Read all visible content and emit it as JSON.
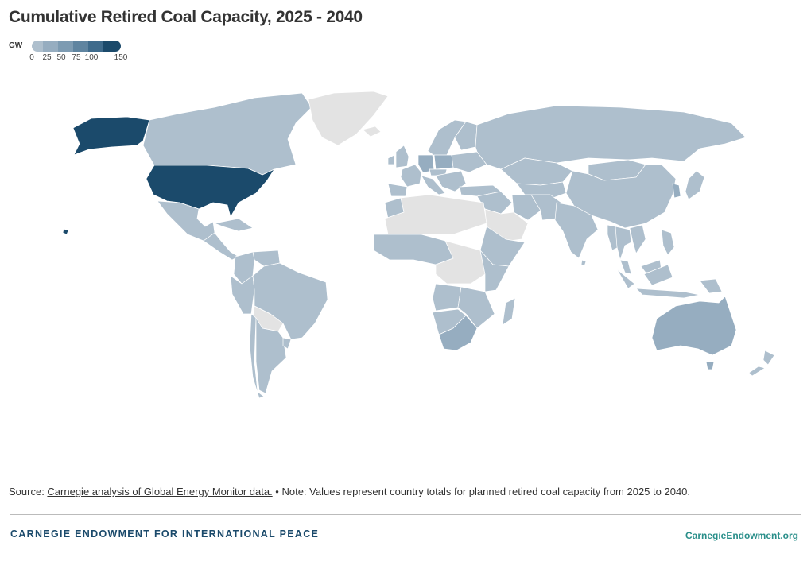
{
  "title": "Cumulative Retired Coal Capacity, 2025 - 2040",
  "legend": {
    "unit": "GW",
    "ticks": [
      {
        "label": "0",
        "value": 0
      },
      {
        "label": "25",
        "value": 25
      },
      {
        "label": "50",
        "value": 50
      },
      {
        "label": "75",
        "value": 75
      },
      {
        "label": "100",
        "value": 100
      },
      {
        "label": "150",
        "value": 150
      }
    ],
    "colors": [
      "#aebfcd",
      "#96adc0",
      "#7d9bb2",
      "#5f84a0",
      "#3f6b8c",
      "#1b4a6b"
    ],
    "no_data_color": "#e3e3e3",
    "min": 0,
    "max": 150
  },
  "map": {
    "regions": [
      {
        "name": "United States",
        "value": 150
      },
      {
        "name": "Alaska",
        "value": 150
      },
      {
        "name": "Canada",
        "value": 8
      },
      {
        "name": "Greenland",
        "value": null
      },
      {
        "name": "Mexico",
        "value": 6
      },
      {
        "name": "Central America",
        "value": 1
      },
      {
        "name": "Caribbean",
        "value": 1
      },
      {
        "name": "Colombia",
        "value": 3
      },
      {
        "name": "Venezuela",
        "value": 1
      },
      {
        "name": "Peru",
        "value": 2
      },
      {
        "name": "Brazil",
        "value": 4
      },
      {
        "name": "Bolivia/Paraguay",
        "value": null
      },
      {
        "name": "Chile",
        "value": 5
      },
      {
        "name": "Argentina",
        "value": 2
      },
      {
        "name": "Uruguay",
        "value": 1
      },
      {
        "name": "Iceland",
        "value": null
      },
      {
        "name": "United Kingdom",
        "value": 3
      },
      {
        "name": "Ireland",
        "value": 1
      },
      {
        "name": "Iberia",
        "value": 10
      },
      {
        "name": "France",
        "value": 3
      },
      {
        "name": "Germany",
        "value": 40
      },
      {
        "name": "Poland",
        "value": 25
      },
      {
        "name": "Czechia",
        "value": 8
      },
      {
        "name": "Italy",
        "value": 7
      },
      {
        "name": "Balkans",
        "value": 6
      },
      {
        "name": "Scandinavia",
        "value": 1
      },
      {
        "name": "Finland",
        "value": 4
      },
      {
        "name": "Ukraine",
        "value": 15
      },
      {
        "name": "Turkey",
        "value": 2
      },
      {
        "name": "Russia",
        "value": 12
      },
      {
        "name": "Kazakhstan",
        "value": 10
      },
      {
        "name": "Central Asia",
        "value": 6
      },
      {
        "name": "Mongolia",
        "value": 2
      },
      {
        "name": "China",
        "value": 20
      },
      {
        "name": "Korea",
        "value": 30
      },
      {
        "name": "Japan",
        "value": 10
      },
      {
        "name": "Middle East",
        "value": 1
      },
      {
        "name": "Saudi Arabia",
        "value": null
      },
      {
        "name": "Iran",
        "value": 1
      },
      {
        "name": "Afghanistan/Pakistan",
        "value": 2
      },
      {
        "name": "India",
        "value": 15
      },
      {
        "name": "Sri Lanka",
        "value": 2
      },
      {
        "name": "Myanmar",
        "value": 3
      },
      {
        "name": "Thailand",
        "value": 10
      },
      {
        "name": "Vietnam",
        "value": 8
      },
      {
        "name": "Malaysia",
        "value": 6
      },
      {
        "name": "Philippines",
        "value": 5
      },
      {
        "name": "Indonesia",
        "value": 8
      },
      {
        "name": "Papua New Guinea",
        "value": 3
      },
      {
        "name": "Australia",
        "value": 40
      },
      {
        "name": "Tasmania",
        "value": 40
      },
      {
        "name": "New Zealand",
        "value": 1
      },
      {
        "name": "North Africa",
        "value": null
      },
      {
        "name": "Morocco",
        "value": 2
      },
      {
        "name": "West Africa",
        "value": 1
      },
      {
        "name": "Central Africa",
        "value": null
      },
      {
        "name": "East Africa",
        "value": 1
      },
      {
        "name": "Horn of Africa",
        "value": 1
      },
      {
        "name": "Angola",
        "value": 1
      },
      {
        "name": "Namibia/Botswana",
        "value": 4
      },
      {
        "name": "Zimbabwe/Mozambique",
        "value": 3
      },
      {
        "name": "South Africa",
        "value": 45
      },
      {
        "name": "Madagascar",
        "value": 1
      },
      {
        "name": "Hawaii",
        "value": 150
      }
    ]
  },
  "source": {
    "prefix": "Source: ",
    "link_text": "Carnegie analysis of Global Energy Monitor data.",
    "note": " • Note: Values represent country totals for planned retired coal capacity from 2025 to 2040."
  },
  "footer": {
    "left": "CARNEGIE ENDOWMENT FOR INTERNATIONAL PEACE",
    "right": "CarnegieEndowment.org"
  }
}
